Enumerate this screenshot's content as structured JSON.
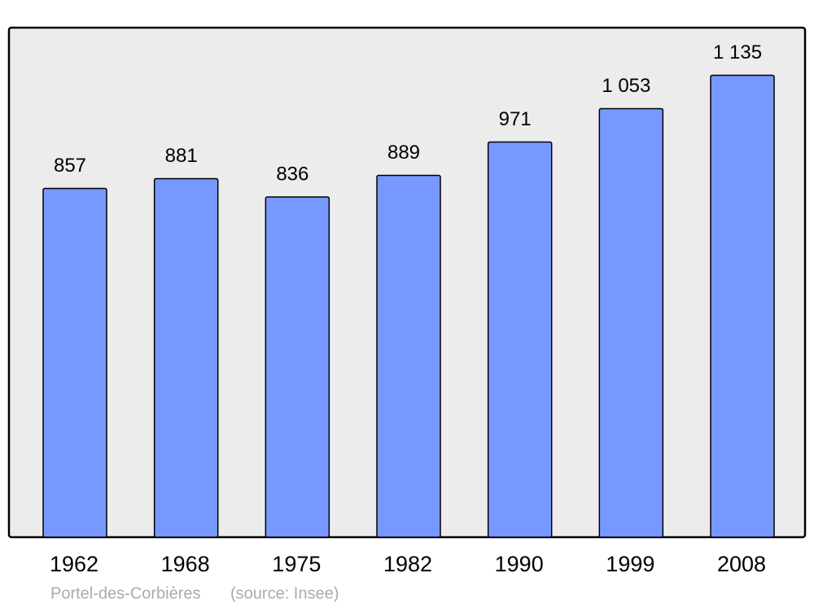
{
  "chart_data": {
    "type": "bar",
    "categories": [
      "1962",
      "1968",
      "1975",
      "1982",
      "1990",
      "1999",
      "2008"
    ],
    "values": [
      857,
      881,
      836,
      889,
      971,
      1053,
      1135
    ],
    "value_labels": [
      "857",
      "881",
      "836",
      "889",
      "971",
      "1 053",
      "1 135"
    ],
    "color": "#7799ff",
    "footer": {
      "place": "Portel-des-Corbières",
      "source": "(source: Insee)"
    }
  }
}
